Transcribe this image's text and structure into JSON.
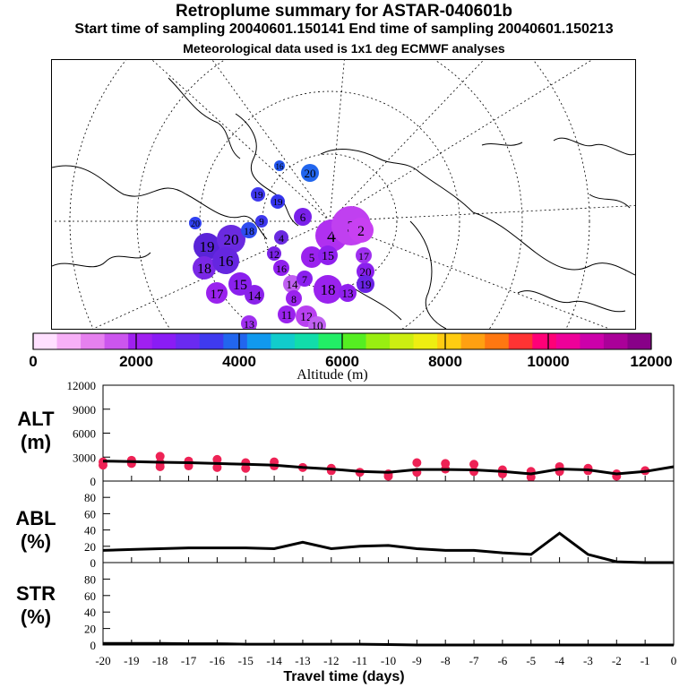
{
  "header": {
    "title": "Retroplume summary for ASTAR-040601b",
    "sampling": "Start time of sampling 20040601.150141     End time of sampling 20040601.150213",
    "met": "Meteorological data used is 1x1 deg ECMWF analyses"
  },
  "colorbar": {
    "label": "Altitude (m)",
    "ticks": [
      "0",
      "2000",
      "4000",
      "6000",
      "8000",
      "10000",
      "12000"
    ],
    "colors": [
      "#ffe0ff",
      "#f7b0f7",
      "#e680ef",
      "#cc55ee",
      "#a020f0",
      "#8a1cf5",
      "#6a2af0",
      "#3f3aef",
      "#2266ee",
      "#1199ee",
      "#11cccc",
      "#11ddaa",
      "#22ee66",
      "#55ee22",
      "#99ee11",
      "#ccee11",
      "#eeee11",
      "#ffcc11",
      "#ffa011",
      "#ff7711",
      "#ff3333",
      "#ff0077",
      "#ee0099",
      "#cc00aa",
      "#aa0099",
      "#880088"
    ]
  },
  "map": {
    "clusters": [
      {
        "n": "19",
        "c": "#5a24d8"
      },
      {
        "n": "20",
        "c": "#6a2ae0"
      },
      {
        "n": "18",
        "c": "#7a28e6"
      },
      {
        "n": "16",
        "c": "#6526e0"
      },
      {
        "n": "17",
        "c": "#9a22ee"
      },
      {
        "n": "15",
        "c": "#8a20ee"
      },
      {
        "n": "14",
        "c": "#8a22ea"
      },
      {
        "n": "20",
        "c": "#2f40f0"
      },
      {
        "n": "18",
        "c": "#2f4cf0"
      },
      {
        "n": "19",
        "c": "#3f38ee"
      },
      {
        "n": "20",
        "c": "#2266ee"
      },
      {
        "n": "16",
        "c": "#2255ee"
      },
      {
        "n": "19",
        "c": "#3535ee"
      },
      {
        "n": "9",
        "c": "#3f38ee"
      },
      {
        "n": "6",
        "c": "#7a20ea"
      },
      {
        "n": "4",
        "c": "#b030f0"
      },
      {
        "n": "5",
        "c": "#9a22ee"
      },
      {
        "n": "3",
        "c": "#c040f0"
      },
      {
        "n": "2",
        "c": "#c840f2"
      },
      {
        "n": "15",
        "c": "#9020ee"
      },
      {
        "n": "18",
        "c": "#9a22ee"
      },
      {
        "n": "20",
        "c": "#8a20ee"
      },
      {
        "n": "19",
        "c": "#6a22e6"
      },
      {
        "n": "12",
        "c": "#b840f0"
      },
      {
        "n": "11",
        "c": "#9a22ee"
      },
      {
        "n": "10",
        "c": "#c060f2"
      },
      {
        "n": "13",
        "c": "#a030f0"
      },
      {
        "n": "14",
        "c": "#c060f2"
      },
      {
        "n": "16",
        "c": "#9020ee"
      },
      {
        "n": "4",
        "c": "#6a2ae0"
      },
      {
        "n": "7",
        "c": "#8a20ee"
      },
      {
        "n": "8",
        "c": "#9a22ee"
      },
      {
        "n": "12",
        "c": "#7a22e6"
      },
      {
        "n": "13",
        "c": "#9020ee"
      },
      {
        "n": "17",
        "c": "#a030f0"
      }
    ]
  },
  "panels": {
    "alt_label": "ALT\n(m)",
    "abl_label": "ABL\n(%)",
    "str_label": "STR\n(%)",
    "xlabel": "Travel time (days)"
  },
  "chart_data": [
    {
      "type": "line",
      "title": "ALT",
      "ylabel": "ALT (m)",
      "xlabel": "Travel time (days)",
      "x": [
        -20,
        -19,
        -18,
        -17,
        -16,
        -15,
        -14,
        -13,
        -12,
        -11,
        -10,
        -9,
        -8,
        -7,
        -6,
        -5,
        -4,
        -3,
        -2,
        -1,
        0
      ],
      "values": [
        2500,
        2450,
        2350,
        2300,
        2200,
        2100,
        2000,
        1700,
        1500,
        1200,
        1100,
        1450,
        1450,
        1400,
        1200,
        900,
        1500,
        1400,
        900,
        1200,
        1800
      ],
      "ylim": [
        0,
        12000
      ],
      "yticks": [
        "0",
        "3000",
        "6000",
        "9000",
        "12000"
      ],
      "scatter": [
        {
          "x": -20,
          "y": 2400
        },
        {
          "x": -20,
          "y": 2000
        },
        {
          "x": -19,
          "y": 2600
        },
        {
          "x": -19,
          "y": 2200
        },
        {
          "x": -18,
          "y": 3100
        },
        {
          "x": -18,
          "y": 2300
        },
        {
          "x": -18,
          "y": 1800
        },
        {
          "x": -17,
          "y": 2500
        },
        {
          "x": -17,
          "y": 1900
        },
        {
          "x": -16,
          "y": 2700
        },
        {
          "x": -16,
          "y": 1700
        },
        {
          "x": -15,
          "y": 2300
        },
        {
          "x": -15,
          "y": 1600
        },
        {
          "x": -14,
          "y": 2400
        },
        {
          "x": -14,
          "y": 1900
        },
        {
          "x": -13,
          "y": 1700
        },
        {
          "x": -12,
          "y": 1600
        },
        {
          "x": -12,
          "y": 1300
        },
        {
          "x": -11,
          "y": 1100
        },
        {
          "x": -10,
          "y": 900
        },
        {
          "x": -10,
          "y": 600
        },
        {
          "x": -9,
          "y": 2300
        },
        {
          "x": -9,
          "y": 1100
        },
        {
          "x": -8,
          "y": 2200
        },
        {
          "x": -8,
          "y": 1500
        },
        {
          "x": -7,
          "y": 2100
        },
        {
          "x": -7,
          "y": 1200
        },
        {
          "x": -6,
          "y": 1400
        },
        {
          "x": -6,
          "y": 900
        },
        {
          "x": -5,
          "y": 1200
        },
        {
          "x": -5,
          "y": 500
        },
        {
          "x": -4,
          "y": 1800
        },
        {
          "x": -4,
          "y": 1200
        },
        {
          "x": -3,
          "y": 1600
        },
        {
          "x": -3,
          "y": 1300
        },
        {
          "x": -2,
          "y": 900
        },
        {
          "x": -2,
          "y": 600
        },
        {
          "x": -1,
          "y": 1300
        }
      ]
    },
    {
      "type": "line",
      "title": "ABL",
      "ylabel": "ABL (%)",
      "x": [
        -20,
        -19,
        -18,
        -17,
        -16,
        -15,
        -14,
        -13,
        -12,
        -11,
        -10,
        -9,
        -8,
        -7,
        -6,
        -5,
        -4,
        -3,
        -2,
        -1,
        0
      ],
      "values": [
        15,
        16,
        17,
        18,
        18,
        18,
        17,
        25,
        17,
        20,
        21,
        17,
        15,
        15,
        12,
        10,
        36,
        10,
        1,
        0,
        0
      ],
      "ylim": [
        0,
        100
      ],
      "yticks": [
        "0",
        "20",
        "40",
        "60",
        "80"
      ]
    },
    {
      "type": "line",
      "title": "STR",
      "ylabel": "STR (%)",
      "x": [
        -20,
        -19,
        -18,
        -17,
        -16,
        -15,
        -14,
        -13,
        -12,
        -11,
        -10,
        -9,
        -8,
        -7,
        -6,
        -5,
        -4,
        -3,
        -2,
        -1,
        0
      ],
      "values": [
        2,
        2,
        2,
        1.5,
        1.5,
        1,
        1,
        1,
        1,
        1,
        0.5,
        0,
        0,
        0,
        0,
        0,
        0,
        0,
        0,
        0,
        0
      ],
      "ylim": [
        0,
        100
      ],
      "yticks": [
        "0",
        "20",
        "40",
        "60",
        "80"
      ],
      "xticks": [
        "-20",
        "-19",
        "-18",
        "-17",
        "-16",
        "-15",
        "-14",
        "-13",
        "-12",
        "-11",
        "-10",
        "-9",
        "-8",
        "-7",
        "-6",
        "-5",
        "-4",
        "-3",
        "-2",
        "-1",
        "0"
      ]
    }
  ]
}
